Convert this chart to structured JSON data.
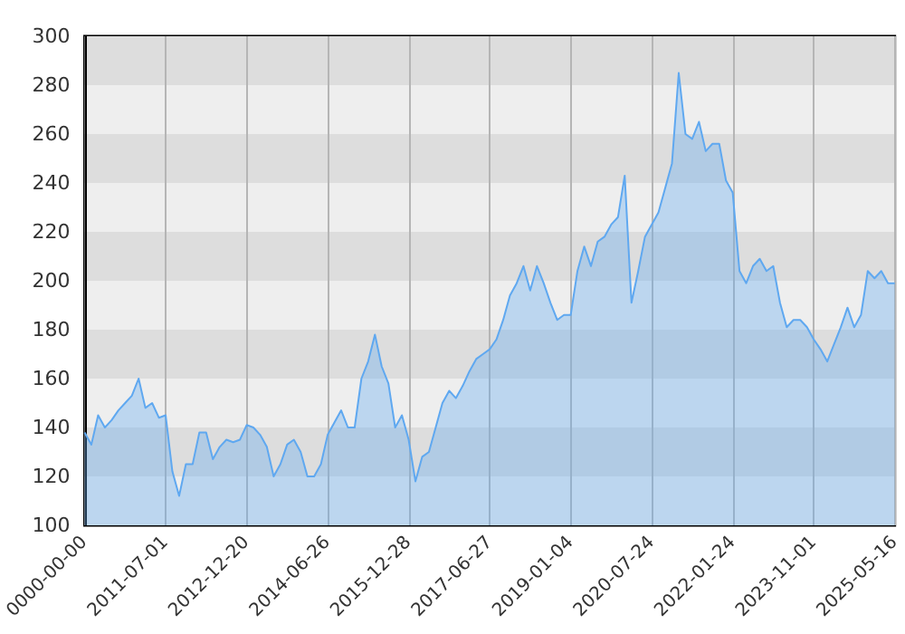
{
  "chart_data": {
    "type": "area",
    "categories": [
      "0000-00-00",
      null,
      null,
      null,
      null,
      null,
      null,
      null,
      null,
      null,
      null,
      null,
      "2011-07-01",
      null,
      null,
      null,
      null,
      null,
      null,
      null,
      null,
      null,
      null,
      null,
      "2012-12-20",
      null,
      null,
      null,
      null,
      null,
      null,
      null,
      null,
      null,
      null,
      null,
      "2014-06-26",
      null,
      null,
      null,
      null,
      null,
      null,
      null,
      null,
      null,
      null,
      null,
      "2015-12-28",
      null,
      null,
      null,
      null,
      null,
      null,
      null,
      null,
      null,
      null,
      null,
      "2017-06-27",
      null,
      null,
      null,
      null,
      null,
      null,
      null,
      null,
      null,
      null,
      null,
      "2019-01-04",
      null,
      null,
      null,
      null,
      null,
      null,
      null,
      null,
      null,
      null,
      null,
      "2020-07-24",
      null,
      null,
      null,
      null,
      null,
      null,
      null,
      null,
      null,
      null,
      null,
      "2022-01-24",
      null,
      null,
      null,
      null,
      null,
      null,
      null,
      null,
      null,
      null,
      null,
      "2023-11-01",
      null,
      null,
      null,
      null,
      null,
      null,
      null,
      null,
      null,
      null,
      null,
      "2025-05-16"
    ],
    "series": [
      {
        "color": "#5fa8f0",
        "values": [
          138,
          133,
          145,
          140,
          143,
          147,
          150,
          153,
          160,
          148,
          150,
          144,
          145,
          122,
          112,
          125,
          125,
          138,
          138,
          127,
          132,
          135,
          134,
          135,
          141,
          140,
          137,
          132,
          120,
          125,
          133,
          135,
          130,
          120,
          120,
          125,
          137,
          142,
          147,
          140,
          140,
          160,
          167,
          178,
          165,
          158,
          140,
          145,
          135,
          118,
          128,
          130,
          140,
          150,
          155,
          152,
          157,
          163,
          168,
          170,
          172,
          176,
          184,
          194,
          199,
          206,
          196,
          206,
          199,
          191,
          184,
          186,
          186,
          204,
          214,
          206,
          216,
          218,
          223,
          226,
          243,
          191,
          204,
          218,
          223,
          228,
          238,
          248,
          285,
          260,
          258,
          265,
          253,
          256,
          256,
          241,
          236,
          204,
          199,
          206,
          209,
          204,
          206,
          191,
          181,
          184,
          184,
          181,
          176,
          172,
          167,
          174,
          181,
          189,
          181,
          186,
          204,
          201,
          204,
          199,
          199
        ]
      }
    ],
    "ylim": [
      100,
      300
    ],
    "yticks": [
      100,
      120,
      140,
      160,
      180,
      200,
      220,
      240,
      260,
      280,
      300
    ],
    "grid": true
  }
}
